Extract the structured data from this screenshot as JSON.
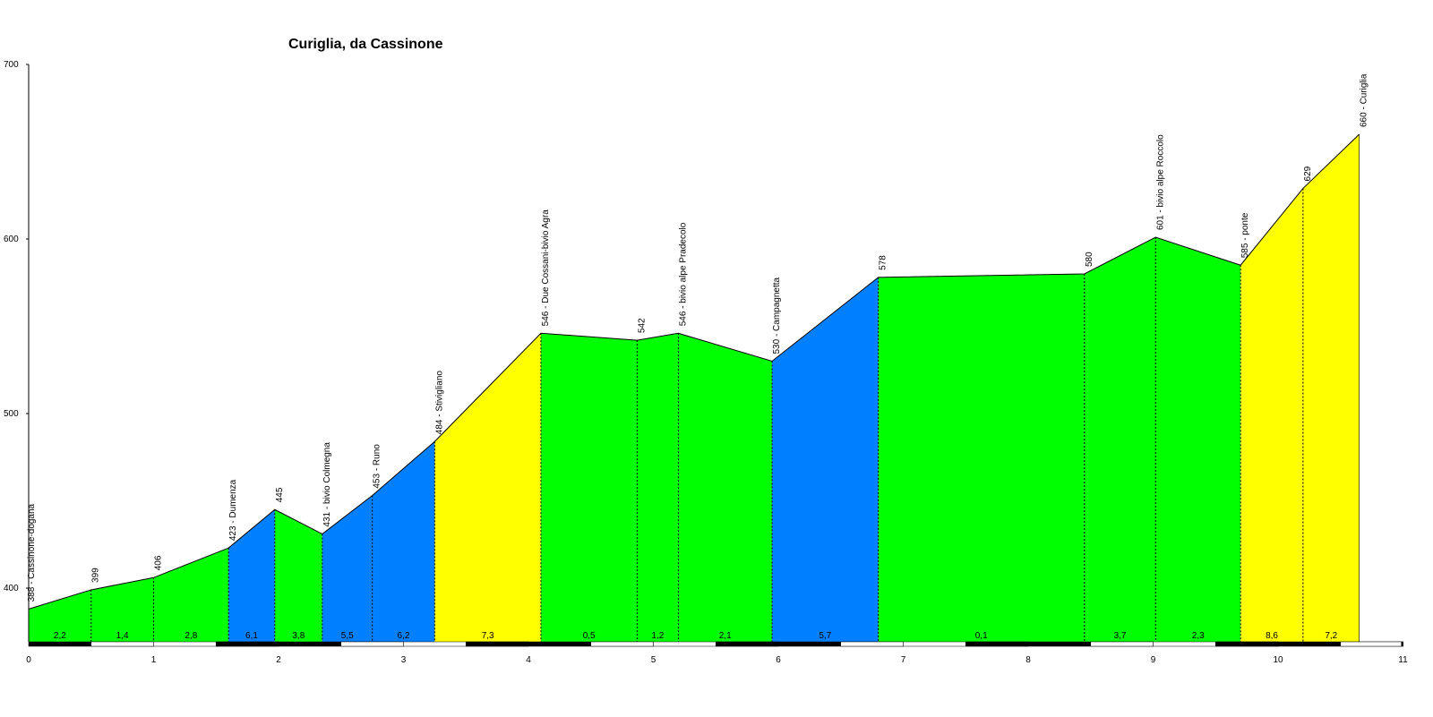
{
  "chart_data": {
    "type": "area",
    "title": "Curiglia, da Cassinone",
    "xlabel": "",
    "ylabel": "",
    "xlim": [
      0,
      11
    ],
    "ylim": [
      370,
      700
    ],
    "x_ticks": [
      "0",
      "1",
      "2",
      "3",
      "4",
      "5",
      "6",
      "7",
      "8",
      "9",
      "10",
      "11"
    ],
    "y_ticks": [
      "400",
      "500",
      "600",
      "700"
    ],
    "grid": false,
    "legend": "none",
    "points": [
      {
        "x": 0.0,
        "y": 388,
        "label": "388 - Cassinone-dogana"
      },
      {
        "x": 0.5,
        "y": 399,
        "label": "399"
      },
      {
        "x": 1.0,
        "y": 406,
        "label": "406"
      },
      {
        "x": 1.6,
        "y": 423,
        "label": "423 - Dumenza"
      },
      {
        "x": 1.97,
        "y": 445,
        "label": "445"
      },
      {
        "x": 2.35,
        "y": 431,
        "label": "431 - bivio Colmegna"
      },
      {
        "x": 2.75,
        "y": 453,
        "label": "453 - Runo"
      },
      {
        "x": 3.25,
        "y": 484,
        "label": "484 - Stivigliano"
      },
      {
        "x": 4.1,
        "y": 546,
        "label": "546 - Due Cossani-bivio Agra"
      },
      {
        "x": 4.87,
        "y": 542,
        "label": "542"
      },
      {
        "x": 5.2,
        "y": 546,
        "label": "546 - bivio alpe Pradecolo"
      },
      {
        "x": 5.95,
        "y": 530,
        "label": "530 - Campagnetta"
      },
      {
        "x": 6.8,
        "y": 578,
        "label": "578"
      },
      {
        "x": 8.45,
        "y": 580,
        "label": "580"
      },
      {
        "x": 9.02,
        "y": 601,
        "label": "601 - bivio alpe Roccolo"
      },
      {
        "x": 9.7,
        "y": 585,
        "label": "585 - ponte"
      },
      {
        "x": 10.2,
        "y": 629,
        "label": "629"
      },
      {
        "x": 10.65,
        "y": 660,
        "label": "660 - Curiglia"
      }
    ],
    "segments": [
      {
        "gradient": "2,2",
        "color": "#00ff00"
      },
      {
        "gradient": "1,4",
        "color": "#00ff00"
      },
      {
        "gradient": "2,8",
        "color": "#00ff00"
      },
      {
        "gradient": "6,1",
        "color": "#0080ff"
      },
      {
        "gradient": "3,8",
        "color": "#00ff00"
      },
      {
        "gradient": "5,5",
        "color": "#0080ff"
      },
      {
        "gradient": "6,2",
        "color": "#0080ff"
      },
      {
        "gradient": "7,3",
        "color": "#ffff00"
      },
      {
        "gradient": "0,5",
        "color": "#00ff00"
      },
      {
        "gradient": "1,2",
        "color": "#00ff00"
      },
      {
        "gradient": "2,1",
        "color": "#00ff00"
      },
      {
        "gradient": "5,7",
        "color": "#0080ff"
      },
      {
        "gradient": "0,1",
        "color": "#00ff00"
      },
      {
        "gradient": "3,7",
        "color": "#00ff00"
      },
      {
        "gradient": "2,3",
        "color": "#00ff00"
      },
      {
        "gradient": "8,6",
        "color": "#ffff00"
      },
      {
        "gradient": "7,2",
        "color": "#ffff00"
      }
    ]
  }
}
